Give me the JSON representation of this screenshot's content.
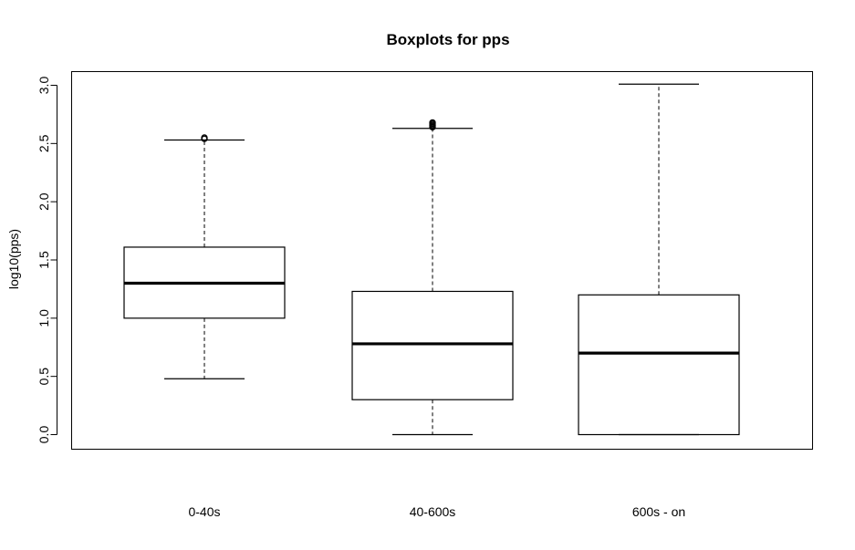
{
  "chart_data": {
    "type": "boxplot",
    "title": "Boxplots for pps",
    "ylabel": "log10(pps)",
    "xlabel": "",
    "ylim": [
      -0.12,
      3.12
    ],
    "yticks": [
      "0.0",
      "0.5",
      "1.0",
      "1.5",
      "2.0",
      "2.5",
      "3.0"
    ],
    "grid": false,
    "categories": [
      "0-40s",
      "40-600s",
      "600s - on"
    ],
    "boxes": [
      {
        "category": "0-40s",
        "whisker_low": 0.48,
        "q1": 1.0,
        "median": 1.3,
        "q3": 1.61,
        "whisker_high": 2.53,
        "outliers": [
          2.54,
          2.55
        ]
      },
      {
        "category": "40-600s",
        "whisker_low": 0.0,
        "q1": 0.3,
        "median": 0.78,
        "q3": 1.23,
        "whisker_high": 2.63,
        "outliers": [
          2.64,
          2.65,
          2.66,
          2.67,
          2.68
        ]
      },
      {
        "category": "600s - on",
        "whisker_low": 0.0,
        "q1": 0.0,
        "median": 0.7,
        "q3": 1.2,
        "whisker_high": 3.01,
        "outliers": []
      }
    ]
  }
}
